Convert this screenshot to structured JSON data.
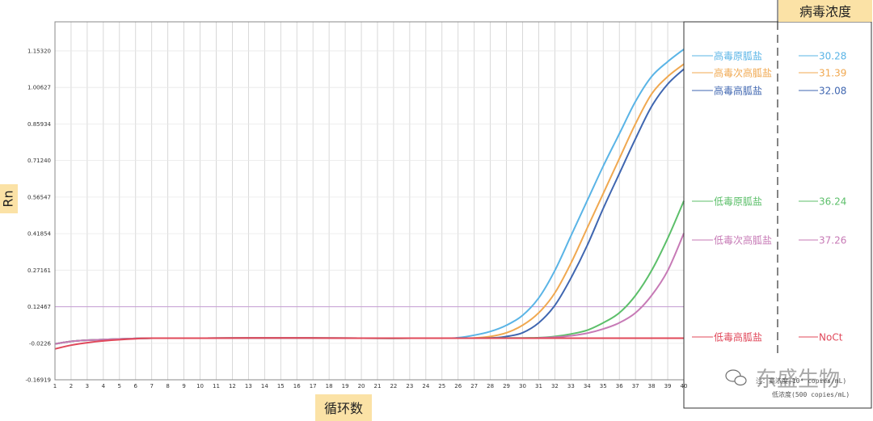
{
  "chart_data": {
    "type": "line",
    "xlabel": "循环数",
    "ylabel": "Rn",
    "legend_header": "病毒浓度",
    "xlim": [
      1,
      40
    ],
    "ylim": [
      -0.16919,
      1.27
    ],
    "yticks": [
      1.1532,
      1.00627,
      0.85934,
      0.7124,
      0.56547,
      0.41854,
      0.27161,
      0.12467,
      -0.0226,
      -0.16919
    ],
    "ytick_labels": [
      "1.15320",
      "1.00627",
      "0.85934",
      "0.71240",
      "0.56547",
      "0.41854",
      "0.27161",
      "0.12467",
      "-0.0226",
      "-0.16919"
    ],
    "xticks": [
      1,
      2,
      3,
      4,
      5,
      6,
      7,
      8,
      9,
      10,
      11,
      12,
      13,
      14,
      15,
      16,
      17,
      18,
      19,
      20,
      21,
      22,
      23,
      24,
      25,
      26,
      27,
      28,
      29,
      30,
      31,
      32,
      33,
      34,
      35,
      36,
      37,
      38,
      39,
      40
    ],
    "threshold": 0.12467,
    "threshold_color": "#c9a6d6",
    "series": [
      {
        "name": "高毒原胍盐",
        "ct": "30.28",
        "color": "#5ab4e6",
        "x": [
          1,
          2,
          3,
          5,
          7,
          10,
          15,
          20,
          25,
          26,
          27,
          28,
          29,
          30,
          31,
          32,
          33,
          34,
          35,
          36,
          37,
          38,
          39,
          40
        ],
        "values": [
          -0.025,
          -0.015,
          -0.01,
          -0.005,
          -0.002,
          -0.002,
          -0.001,
          -0.002,
          -0.002,
          0.0,
          0.01,
          0.025,
          0.05,
          0.09,
          0.16,
          0.27,
          0.41,
          0.55,
          0.69,
          0.82,
          0.95,
          1.05,
          1.11,
          1.16
        ]
      },
      {
        "name": "高毒次高胍盐",
        "ct": "31.39",
        "color": "#f0a850",
        "x": [
          1,
          2,
          3,
          5,
          7,
          10,
          15,
          20,
          25,
          27,
          28,
          29,
          30,
          31,
          32,
          33,
          34,
          35,
          36,
          37,
          38,
          39,
          40
        ],
        "values": [
          -0.025,
          -0.015,
          -0.01,
          -0.005,
          -0.002,
          -0.002,
          -0.001,
          -0.002,
          -0.002,
          -0.001,
          0.005,
          0.02,
          0.05,
          0.1,
          0.18,
          0.3,
          0.44,
          0.58,
          0.72,
          0.86,
          0.98,
          1.05,
          1.1
        ]
      },
      {
        "name": "高毒高胍盐",
        "ct": "32.08",
        "color": "#3f66b0",
        "x": [
          1,
          2,
          3,
          5,
          7,
          10,
          15,
          20,
          25,
          28,
          29,
          30,
          31,
          32,
          33,
          34,
          35,
          36,
          37,
          38,
          39,
          40
        ],
        "values": [
          -0.025,
          -0.015,
          -0.01,
          -0.005,
          -0.002,
          -0.002,
          -0.001,
          -0.002,
          -0.002,
          -0.001,
          0.005,
          0.02,
          0.06,
          0.13,
          0.24,
          0.37,
          0.52,
          0.66,
          0.8,
          0.93,
          1.02,
          1.08
        ]
      },
      {
        "name": "低毒原胍盐",
        "ct": "36.24",
        "color": "#5cbf6a",
        "x": [
          1,
          2,
          3,
          5,
          7,
          10,
          15,
          20,
          25,
          30,
          31,
          32,
          33,
          34,
          35,
          36,
          37,
          38,
          39,
          40
        ],
        "values": [
          -0.025,
          -0.015,
          -0.01,
          -0.005,
          -0.002,
          -0.002,
          -0.001,
          -0.002,
          -0.002,
          -0.001,
          0.0,
          0.005,
          0.015,
          0.03,
          0.06,
          0.1,
          0.17,
          0.27,
          0.4,
          0.55
        ]
      },
      {
        "name": "低毒次高胍盐",
        "ct": "37.26",
        "color": "#c77ab6",
        "x": [
          1,
          2,
          3,
          5,
          7,
          10,
          15,
          20,
          25,
          30,
          31,
          32,
          33,
          34,
          35,
          36,
          37,
          38,
          39,
          40
        ],
        "values": [
          -0.025,
          -0.015,
          -0.01,
          -0.005,
          -0.002,
          -0.002,
          -0.001,
          -0.002,
          -0.002,
          -0.002,
          -0.001,
          0.002,
          0.008,
          0.018,
          0.035,
          0.06,
          0.1,
          0.17,
          0.27,
          0.42
        ]
      },
      {
        "name": "低毒高胍盐",
        "ct": "NoCt",
        "color": "#e0485a",
        "x": [
          1,
          2,
          3,
          4,
          5,
          6,
          7,
          10,
          15,
          20,
          25,
          30,
          35,
          40
        ],
        "values": [
          -0.045,
          -0.03,
          -0.02,
          -0.013,
          -0.008,
          -0.004,
          -0.002,
          -0.002,
          -0.001,
          -0.002,
          -0.002,
          -0.002,
          -0.002,
          -0.002
        ]
      }
    ]
  },
  "watermark": {
    "brand": "东盛生物",
    "line1": "注：高浓度(10⁴ copies/mL)",
    "line2": "低浓度(500 copies/mL)"
  }
}
